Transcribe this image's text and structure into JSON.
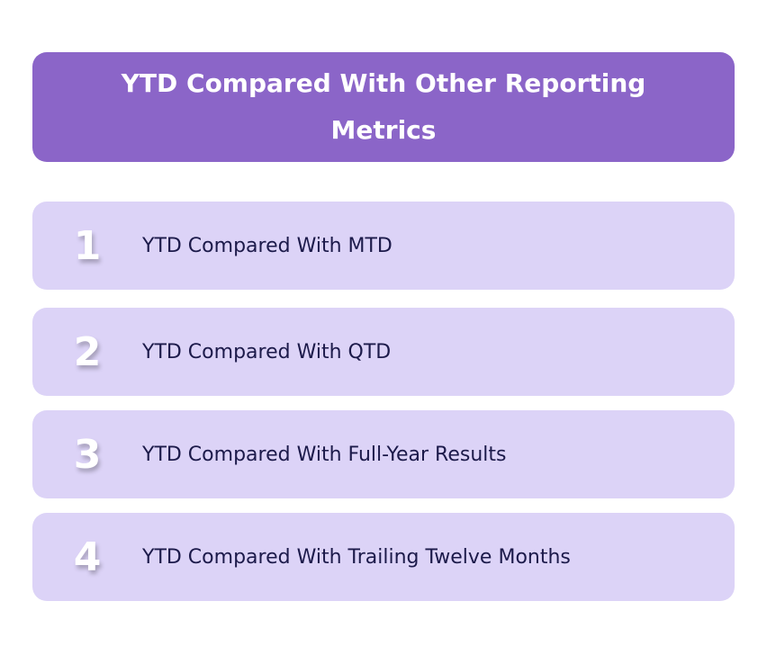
{
  "header": {
    "title": "YTD Compared With Other Reporting Metrics"
  },
  "items": [
    {
      "number": "1",
      "label": "YTD Compared With MTD"
    },
    {
      "number": "2",
      "label": "YTD Compared With QTD"
    },
    {
      "number": "3",
      "label": "YTD Compared With Full-Year Results"
    },
    {
      "number": "4",
      "label": "YTD Compared With Trailing Twelve Months"
    }
  ]
}
